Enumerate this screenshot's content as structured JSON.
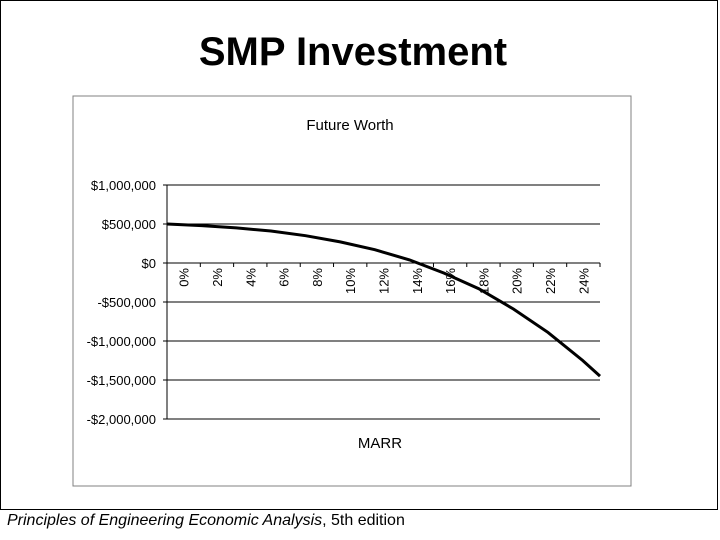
{
  "slide": {
    "title": "SMP Investment"
  },
  "footer": {
    "book_title": "Principles of Engineering Economic Analysis",
    "edition": ", 5th edition"
  },
  "chart_data": {
    "type": "line",
    "title": "Future Worth",
    "xlabel": "MARR",
    "ylabel": "",
    "x_tick_labels": [
      "0%",
      "2%",
      "4%",
      "6%",
      "8%",
      "10%",
      "12%",
      "14%",
      "16%",
      "18%",
      "20%",
      "22%",
      "24%"
    ],
    "y_tick_labels": [
      "$1,000,000",
      "$500,000",
      "$0",
      "-$500,000",
      "-$1,000,000",
      "-$1,500,000",
      "-$2,000,000"
    ],
    "y_tick_values": [
      1000000,
      500000,
      0,
      -500000,
      -1000000,
      -1500000,
      -2000000
    ],
    "xlim": [
      0,
      0.25
    ],
    "ylim": [
      -2000000,
      1000000
    ],
    "grid": "horizontal",
    "legend": "none",
    "series": [
      {
        "x": [
          0,
          0.02,
          0.04,
          0.06,
          0.08,
          0.1,
          0.12,
          0.14,
          0.16,
          0.18,
          0.2,
          0.22,
          0.24,
          0.25
        ],
        "values": [
          500000,
          480000,
          450000,
          410000,
          350000,
          270000,
          170000,
          40000,
          -130000,
          -330000,
          -590000,
          -890000,
          -1250000,
          -1450000
        ],
        "color": "#000000"
      }
    ]
  }
}
